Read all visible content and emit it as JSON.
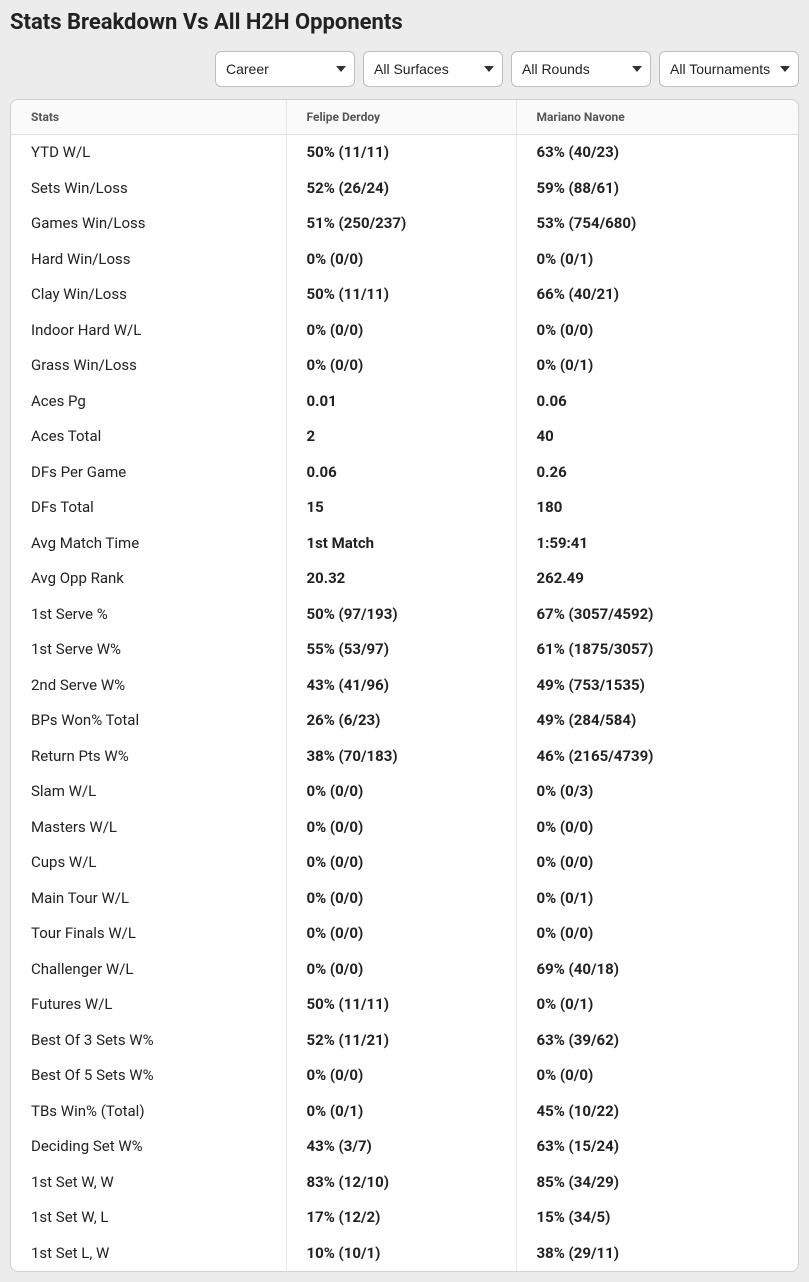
{
  "title": "Stats Breakdown Vs All H2H Opponents",
  "filters": {
    "period": "Career",
    "surface": "All Surfaces",
    "round": "All Rounds",
    "tournament": "All Tournaments"
  },
  "columns": {
    "stats": "Stats",
    "player1": "Felipe Derdoy",
    "player2": "Mariano Navone"
  },
  "rows": [
    {
      "stat": "YTD W/L",
      "p1": "50% (11/11)",
      "p2": "63% (40/23)"
    },
    {
      "stat": "Sets Win/Loss",
      "p1": "52% (26/24)",
      "p2": "59% (88/61)"
    },
    {
      "stat": "Games Win/Loss",
      "p1": "51% (250/237)",
      "p2": "53% (754/680)"
    },
    {
      "stat": "Hard Win/Loss",
      "p1": "0% (0/0)",
      "p2": "0% (0/1)"
    },
    {
      "stat": "Clay Win/Loss",
      "p1": "50% (11/11)",
      "p2": "66% (40/21)"
    },
    {
      "stat": "Indoor Hard W/L",
      "p1": "0% (0/0)",
      "p2": "0% (0/0)"
    },
    {
      "stat": "Grass Win/Loss",
      "p1": "0% (0/0)",
      "p2": "0% (0/1)"
    },
    {
      "stat": "Aces Pg",
      "p1": "0.01",
      "p2": "0.06"
    },
    {
      "stat": "Aces Total",
      "p1": "2",
      "p2": "40"
    },
    {
      "stat": "DFs Per Game",
      "p1": "0.06",
      "p2": "0.26"
    },
    {
      "stat": "DFs Total",
      "p1": "15",
      "p2": "180"
    },
    {
      "stat": "Avg Match Time",
      "p1": "1st Match",
      "p2": "1:59:41"
    },
    {
      "stat": "Avg Opp Rank",
      "p1": "20.32",
      "p2": "262.49"
    },
    {
      "stat": "1st Serve %",
      "p1": "50% (97/193)",
      "p2": "67% (3057/4592)"
    },
    {
      "stat": "1st Serve W%",
      "p1": "55% (53/97)",
      "p2": "61% (1875/3057)"
    },
    {
      "stat": "2nd Serve W%",
      "p1": "43% (41/96)",
      "p2": "49% (753/1535)"
    },
    {
      "stat": "BPs Won% Total",
      "p1": "26% (6/23)",
      "p2": "49% (284/584)"
    },
    {
      "stat": "Return Pts W%",
      "p1": "38% (70/183)",
      "p2": "46% (2165/4739)"
    },
    {
      "stat": "Slam W/L",
      "p1": "0% (0/0)",
      "p2": "0% (0/3)"
    },
    {
      "stat": "Masters W/L",
      "p1": "0% (0/0)",
      "p2": "0% (0/0)"
    },
    {
      "stat": "Cups W/L",
      "p1": "0% (0/0)",
      "p2": "0% (0/0)"
    },
    {
      "stat": "Main Tour W/L",
      "p1": "0% (0/0)",
      "p2": "0% (0/1)"
    },
    {
      "stat": "Tour Finals W/L",
      "p1": "0% (0/0)",
      "p2": "0% (0/0)"
    },
    {
      "stat": "Challenger W/L",
      "p1": "0% (0/0)",
      "p2": "69% (40/18)"
    },
    {
      "stat": "Futures W/L",
      "p1": "50% (11/11)",
      "p2": "0% (0/1)"
    },
    {
      "stat": "Best Of 3 Sets W%",
      "p1": "52% (11/21)",
      "p2": "63% (39/62)"
    },
    {
      "stat": "Best Of 5 Sets W%",
      "p1": "0% (0/0)",
      "p2": "0% (0/0)"
    },
    {
      "stat": "TBs Win% (Total)",
      "p1": "0% (0/1)",
      "p2": "45% (10/22)"
    },
    {
      "stat": "Deciding Set W%",
      "p1": "43% (3/7)",
      "p2": "63% (15/24)"
    },
    {
      "stat": "1st Set W, W",
      "p1": "83% (12/10)",
      "p2": "85% (34/29)"
    },
    {
      "stat": "1st Set W, L",
      "p1": "17% (12/2)",
      "p2": "15% (34/5)"
    },
    {
      "stat": "1st Set L, W",
      "p1": "10% (10/1)",
      "p2": "38% (29/11)"
    }
  ]
}
